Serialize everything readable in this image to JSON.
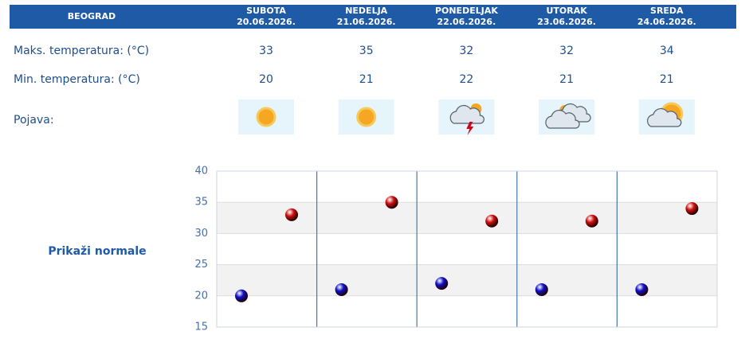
{
  "header": {
    "city": "BEOGRAD",
    "days": [
      {
        "name": "SUBOTA",
        "date": "20.06.2026."
      },
      {
        "name": "NEDELJA",
        "date": "21.06.2026."
      },
      {
        "name": "PONEDELJAK",
        "date": "22.06.2026."
      },
      {
        "name": "UTORAK",
        "date": "23.06.2026."
      },
      {
        "name": "SREDA",
        "date": "24.06.2026."
      }
    ]
  },
  "rows": {
    "max_label": "Maks. temperatura: (°C)",
    "min_label": "Min. temperatura: (°C)",
    "phenomenon_label": "Pojava:"
  },
  "toggle": "Prikaži normale",
  "chart_data": {
    "type": "scatter",
    "ylim": [
      15,
      40
    ],
    "yticks": [
      15,
      20,
      25,
      30,
      35,
      40
    ],
    "series": [
      {
        "color": "#1010c8",
        "values": [
          20,
          21,
          22,
          21,
          21
        ]
      },
      {
        "color": "#d01010",
        "values": [
          33,
          35,
          32,
          32,
          34
        ]
      }
    ]
  }
}
